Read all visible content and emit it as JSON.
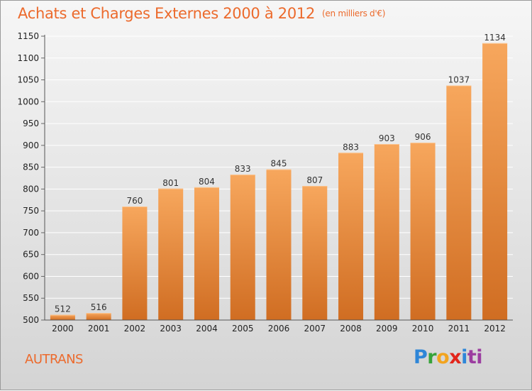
{
  "header": {
    "title": "Achats et Charges Externes 2000 à 2012",
    "unit": "(en milliers d'€)"
  },
  "footer": {
    "commune": "AUTRANS",
    "logo_letters": [
      "P",
      "r",
      "o",
      "x",
      "i",
      "ti"
    ]
  },
  "colors": {
    "title": "#ec6a2c",
    "bar_light": "#f5a55c",
    "bar_dark": "#d06d22",
    "grid": "#ffffff"
  },
  "chart_data": {
    "type": "bar",
    "title": "Achats et Charges Externes 2000 à 2012",
    "subtitle": "(en milliers d'€)",
    "xlabel": "",
    "ylabel": "",
    "ylim": [
      500,
      1150
    ],
    "yticks": [
      500,
      550,
      600,
      650,
      700,
      750,
      800,
      850,
      900,
      950,
      1000,
      1050,
      1100,
      1150
    ],
    "grid": true,
    "categories": [
      "2000",
      "2001",
      "2002",
      "2003",
      "2004",
      "2005",
      "2006",
      "2007",
      "2008",
      "2009",
      "2010",
      "2011",
      "2012"
    ],
    "values": [
      512,
      516,
      760,
      801,
      804,
      833,
      845,
      807,
      883,
      903,
      906,
      1037,
      1134
    ],
    "value_labels": [
      "512",
      "516",
      "760",
      "801",
      "804",
      "833",
      "845",
      "807",
      "883",
      "903",
      "906",
      "1037",
      "1134"
    ]
  }
}
